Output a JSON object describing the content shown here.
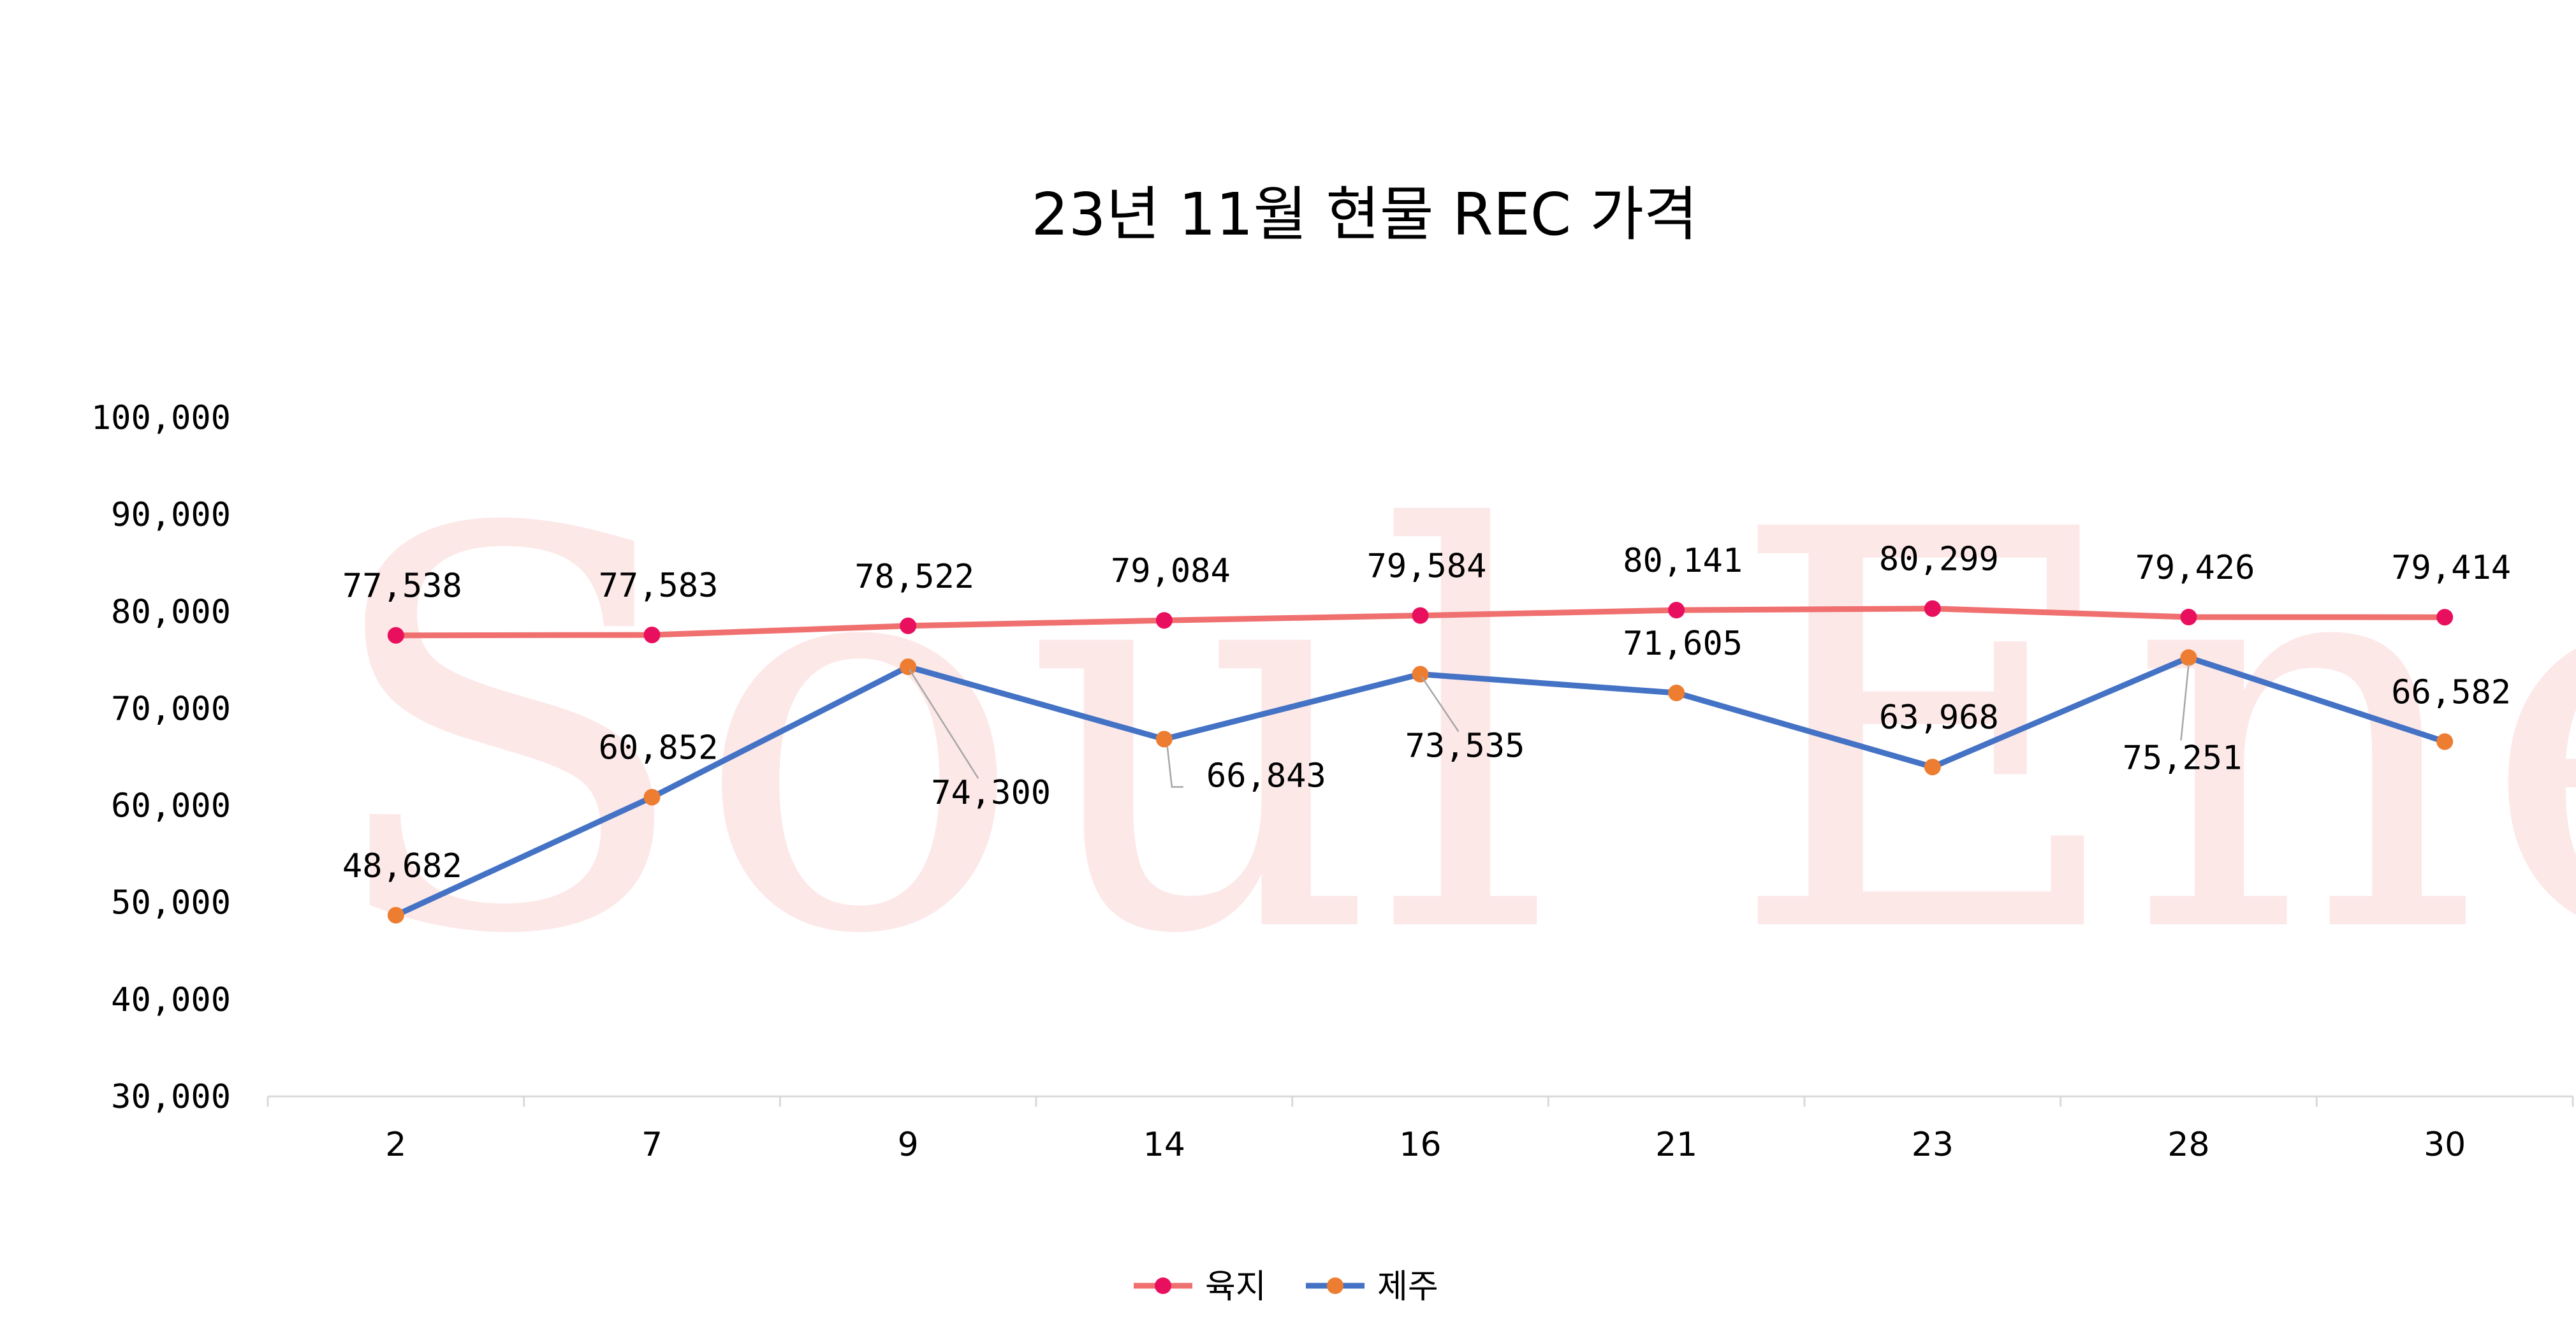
{
  "watermark": "Soul Energy",
  "colors": {
    "series_land_line": "#f07070",
    "series_land_marker": "#e8105e",
    "series_jeju_line": "#4472c4",
    "series_jeju_marker": "#ed7d31",
    "axis": "#d9d9d9"
  },
  "chart_data": {
    "type": "line",
    "title": "23년 11월 현물 REC 가격",
    "xlabel": "",
    "ylabel": "",
    "categories": [
      "2",
      "7",
      "9",
      "14",
      "16",
      "21",
      "23",
      "28",
      "30"
    ],
    "ylim": [
      30000,
      100000
    ],
    "yticks": [
      "30,000",
      "40,000",
      "50,000",
      "60,000",
      "70,000",
      "80,000",
      "90,000",
      "100,000"
    ],
    "grid": false,
    "legend_position": "bottom",
    "series": [
      {
        "name": "육지",
        "values": [
          77538,
          77583,
          78522,
          79084,
          79584,
          80141,
          80299,
          79426,
          79414
        ],
        "labels": [
          "77,538",
          "77,583",
          "78,522",
          "79,084",
          "79,584",
          "80,141",
          "80,299",
          "79,426",
          "79,414"
        ]
      },
      {
        "name": "제주",
        "values": [
          48682,
          60852,
          74300,
          66843,
          73535,
          71605,
          63968,
          75251,
          66582
        ],
        "labels": [
          "48,682",
          "60,852",
          "74,300",
          "66,843",
          "73,535",
          "71,605",
          "63,968",
          "75,251",
          "66,582"
        ]
      }
    ]
  }
}
